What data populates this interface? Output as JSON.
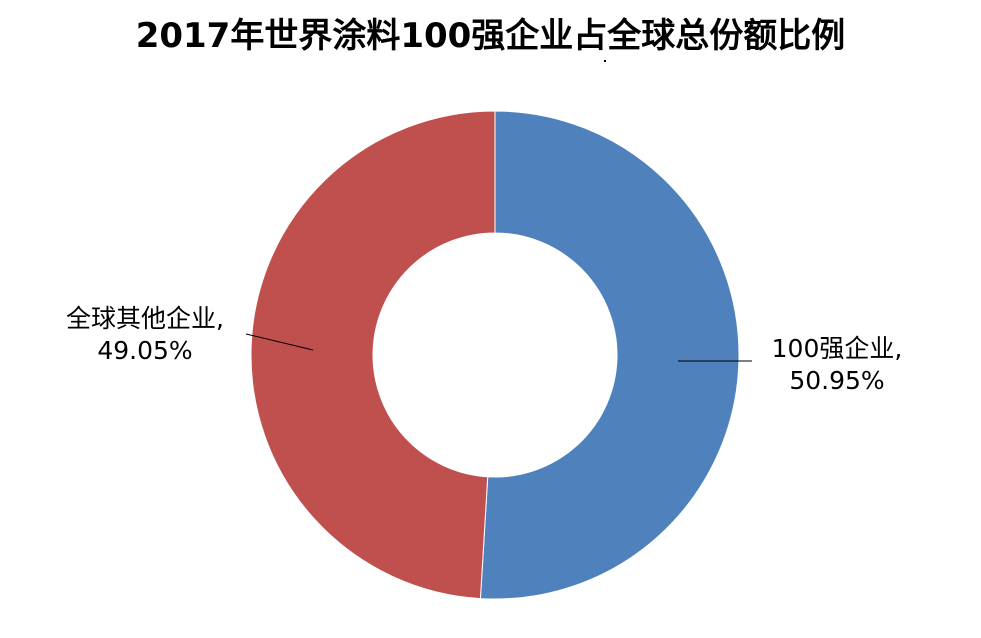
{
  "chart_data": {
    "type": "pie",
    "variant": "donut",
    "title": "2017年世界涂料100强企业占全球总份额比例",
    "slices": [
      {
        "name": "100强企业",
        "value": 50.95,
        "label_name": "100强企业,",
        "label_value": "50.95%",
        "color": "#4F81BD"
      },
      {
        "name": "全球其他企业",
        "value": 49.05,
        "label_name": "全球其他企业,",
        "label_value": "49.05%",
        "color": "#C0504D"
      }
    ],
    "legend": "none"
  }
}
